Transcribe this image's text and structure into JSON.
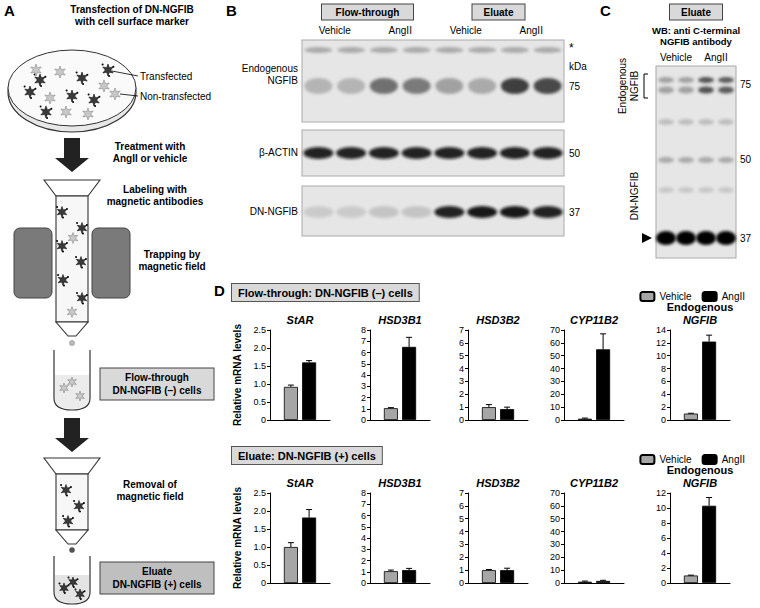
{
  "panel_A": {
    "label": "A",
    "steps": [
      [
        "Transfection of DN-NGFIB",
        "with cell surface marker"
      ],
      [
        "Treatment with",
        "AngII or vehicle"
      ],
      [
        "Labeling with",
        "magnetic antibodies"
      ],
      [
        "Trapping by",
        "magnetic field"
      ],
      [
        "Removal of",
        "magnetic field"
      ]
    ],
    "dish_labels": [
      "Transfected",
      "Non-transfected"
    ],
    "fractions": [
      [
        "Flow-through",
        "DN-NGFIB (–) cells"
      ],
      [
        "Eluate",
        "DN-NGFIB (+) cells"
      ]
    ]
  },
  "panel_B": {
    "label": "B",
    "groups": [
      "Flow-through",
      "Eluate"
    ],
    "lanes": [
      "Vehicle",
      "AngII"
    ],
    "rows": [
      [
        "Endogenous",
        "NGFIB"
      ],
      [
        "β-ACTIN"
      ],
      [
        "DN-NGFIB"
      ]
    ],
    "unit": "kDa",
    "markers": [
      75,
      50,
      37
    ],
    "asterisk": "*"
  },
  "panel_C": {
    "label": "C",
    "header": "Eluate",
    "antibody": [
      "WB: anti C-terminal",
      "NGFIB antibody"
    ],
    "lanes": [
      "Vehicle",
      "AngII"
    ],
    "bands": [
      [
        "Endogenous",
        "NGFIB"
      ],
      [
        "DN-NGFIB"
      ]
    ],
    "markers": [
      75,
      50,
      37
    ]
  },
  "panel_D": {
    "label": "D",
    "rows": [
      "Flow-through: DN-NGFIB (–) cells",
      "Eluate: DN-NGFIB (+) cells"
    ]
  },
  "chart_data": [
    {
      "type": "bar",
      "title": "StAR",
      "y_label": "Relative mRNA levels",
      "categories": [
        null
      ],
      "series": [
        {
          "name": "Vehicle",
          "color": "#a6a6a6",
          "values": [
            0.92
          ],
          "errors": [
            0.05
          ]
        },
        {
          "name": "AngII",
          "color": "#000000",
          "values": [
            1.6
          ],
          "errors": [
            0.05
          ]
        }
      ],
      "ylim": [
        0,
        2.5
      ],
      "yticks": [
        0,
        0.5,
        {
          "value": 1,
          "label": "1.0"
        },
        1.5,
        {
          "value": 2,
          "label": "2.0"
        },
        2.5
      ],
      "tick_labels": "y"
    },
    {
      "type": "bar",
      "title": "HSD3B1",
      "categories": [
        null
      ],
      "series": [
        {
          "name": "Vehicle",
          "color": "#a6a6a6",
          "values": [
            1.05
          ],
          "errors": [
            0.05
          ]
        },
        {
          "name": "AngII",
          "color": "#000000",
          "values": [
            6.5
          ],
          "errors": [
            0.85
          ]
        }
      ],
      "ylim": [
        0,
        8
      ],
      "yticks": [
        0,
        1,
        2,
        3,
        4,
        5,
        6,
        7,
        8
      ],
      "tick_labels": "y"
    },
    {
      "type": "bar",
      "title": "HSD3B2",
      "categories": [
        null
      ],
      "series": [
        {
          "name": "Vehicle",
          "color": "#a6a6a6",
          "values": [
            1.0
          ],
          "errors": [
            0.2
          ]
        },
        {
          "name": "AngII",
          "color": "#000000",
          "values": [
            0.85
          ],
          "errors": [
            0.15
          ]
        }
      ],
      "ylim": [
        0,
        7
      ],
      "yticks": [
        0,
        1,
        2,
        3,
        4,
        5,
        6,
        7
      ],
      "tick_labels": "y"
    },
    {
      "type": "bar",
      "title": "CYP11B2",
      "categories": [
        null
      ],
      "series": [
        {
          "name": "Vehicle",
          "color": "#a6a6a6",
          "values": [
            1.0
          ],
          "errors": [
            0.5
          ]
        },
        {
          "name": "AngII",
          "color": "#000000",
          "values": [
            55
          ],
          "errors": [
            12
          ]
        }
      ],
      "ylim": [
        0,
        70
      ],
      "yticks": [
        0,
        10,
        20,
        30,
        40,
        50,
        60,
        70
      ],
      "tick_labels": "y"
    },
    {
      "type": "bar",
      "title": "Endogenous NGFIB",
      "categories": [
        null
      ],
      "legend": "top right",
      "series": [
        {
          "name": "Vehicle",
          "color": "#a6a6a6",
          "values": [
            1.0
          ],
          "errors": [
            0.05
          ]
        },
        {
          "name": "AngII",
          "color": "#000000",
          "values": [
            12.2
          ],
          "errors": [
            1.0
          ]
        }
      ],
      "ylim": [
        0,
        14
      ],
      "yticks": [
        0,
        2,
        4,
        6,
        8,
        10,
        12,
        14
      ],
      "tick_labels": "y"
    },
    {
      "type": "bar",
      "title": "StAR",
      "y_label": "Relative mRNA levels",
      "categories": [
        null
      ],
      "series": [
        {
          "name": "Vehicle",
          "color": "#a6a6a6",
          "values": [
            1.0
          ],
          "errors": [
            0.12
          ]
        },
        {
          "name": "AngII",
          "color": "#000000",
          "values": [
            1.82
          ],
          "errors": [
            0.22
          ]
        }
      ],
      "ylim": [
        0,
        2.5
      ],
      "yticks": [
        0,
        0.5,
        {
          "value": 1,
          "label": "1.0"
        },
        1.5,
        {
          "value": 2,
          "label": "2.0"
        },
        2.5
      ],
      "tick_labels": "y"
    },
    {
      "type": "bar",
      "title": "HSD3B1",
      "categories": [
        null
      ],
      "series": [
        {
          "name": "Vehicle",
          "color": "#a6a6a6",
          "values": [
            1.05
          ],
          "errors": [
            0.1
          ]
        },
        {
          "name": "AngII",
          "color": "#000000",
          "values": [
            1.15
          ],
          "errors": [
            0.15
          ]
        }
      ],
      "ylim": [
        0,
        8
      ],
      "yticks": [
        0,
        1,
        2,
        3,
        4,
        5,
        6,
        7,
        8
      ],
      "tick_labels": "y"
    },
    {
      "type": "bar",
      "title": "HSD3B2",
      "categories": [
        null
      ],
      "series": [
        {
          "name": "Vehicle",
          "color": "#a6a6a6",
          "values": [
            1.0
          ],
          "errors": [
            0.05
          ]
        },
        {
          "name": "AngII",
          "color": "#000000",
          "values": [
            1.0
          ],
          "errors": [
            0.15
          ]
        }
      ],
      "ylim": [
        0,
        7
      ],
      "yticks": [
        0,
        1,
        2,
        3,
        4,
        5,
        6,
        7
      ],
      "tick_labels": "y"
    },
    {
      "type": "bar",
      "title": "CYP11B2",
      "categories": [
        null
      ],
      "series": [
        {
          "name": "Vehicle",
          "color": "#a6a6a6",
          "values": [
            1.0
          ],
          "errors": [
            0.5
          ]
        },
        {
          "name": "AngII",
          "color": "#000000",
          "values": [
            1.6
          ],
          "errors": [
            0.5
          ]
        }
      ],
      "ylim": [
        0,
        70
      ],
      "yticks": [
        0,
        10,
        20,
        30,
        40,
        50,
        60,
        70
      ],
      "tick_labels": "y"
    },
    {
      "type": "bar",
      "title": "Endogenous NGFIB",
      "categories": [
        null
      ],
      "legend": "top right",
      "series": [
        {
          "name": "Vehicle",
          "color": "#a6a6a6",
          "values": [
            1.0
          ],
          "errors": [
            0.05
          ]
        },
        {
          "name": "AngII",
          "color": "#000000",
          "values": [
            10.3
          ],
          "errors": [
            1.1
          ]
        }
      ],
      "ylim": [
        0,
        12
      ],
      "yticks": [
        0,
        2,
        4,
        6,
        8,
        10,
        12
      ],
      "tick_labels": "y"
    }
  ]
}
